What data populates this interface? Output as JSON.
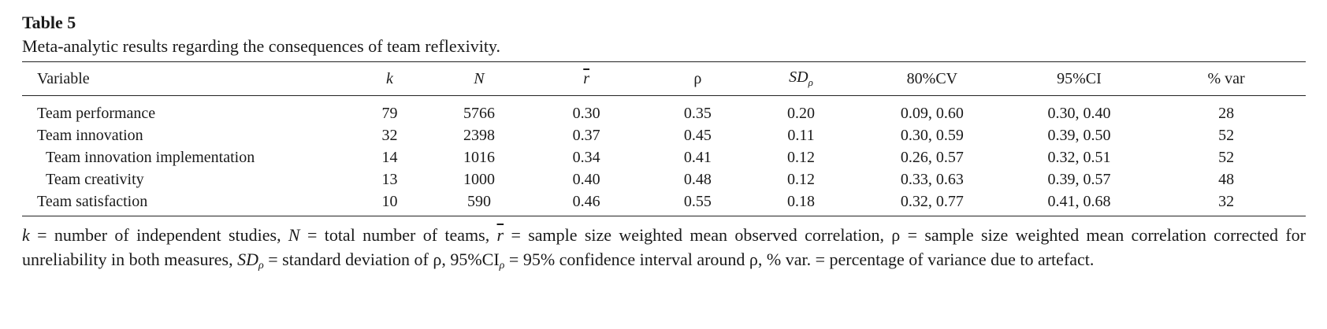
{
  "table": {
    "label": "Table 5",
    "caption": "Meta-analytic results regarding the consequences of team reflexivity.",
    "headers": {
      "variable": "Variable",
      "k": "k",
      "N": "N",
      "r": "r",
      "rho": "ρ",
      "sd_main": "SD",
      "sd_sub": "ρ",
      "cv": "80%CV",
      "ci": "95%CI",
      "pct_var": "% var"
    },
    "rows": [
      {
        "variable": "Team performance",
        "indent": false,
        "k": "79",
        "N": "5766",
        "r": "0.30",
        "rho": "0.35",
        "sd": "0.20",
        "cv": "0.09, 0.60",
        "ci": "0.30, 0.40",
        "pct_var": "28"
      },
      {
        "variable": "Team innovation",
        "indent": false,
        "k": "32",
        "N": "2398",
        "r": "0.37",
        "rho": "0.45",
        "sd": "0.11",
        "cv": "0.30, 0.59",
        "ci": "0.39, 0.50",
        "pct_var": "52"
      },
      {
        "variable": "Team innovation implementation",
        "indent": true,
        "k": "14",
        "N": "1016",
        "r": "0.34",
        "rho": "0.41",
        "sd": "0.12",
        "cv": "0.26, 0.57",
        "ci": "0.32, 0.51",
        "pct_var": "52"
      },
      {
        "variable": "Team creativity",
        "indent": true,
        "k": "13",
        "N": "1000",
        "r": "0.40",
        "rho": "0.48",
        "sd": "0.12",
        "cv": "0.33, 0.63",
        "ci": "0.39, 0.57",
        "pct_var": "48"
      },
      {
        "variable": "Team satisfaction",
        "indent": false,
        "k": "10",
        "N": "590",
        "r": "0.46",
        "rho": "0.55",
        "sd": "0.18",
        "cv": "0.32, 0.77",
        "ci": "0.41, 0.68",
        "pct_var": "32"
      }
    ]
  },
  "note": {
    "k_sym": "k",
    "k_def": " = number of independent studies, ",
    "n_sym": "N",
    "n_def": " = total number of teams, ",
    "r_sym": "r",
    "r_def": " = sample size weighted mean observed correlation, ρ = sample size weighted mean correlation corrected for unreliability in both measures, ",
    "sd_sym": "SD",
    "sd_sub": "ρ",
    "sd_def": " = standard deviation of ρ, 95%CI",
    "ci_sub": "ρ",
    "ci_def": " = 95% confidence interval around ρ, % var. = percentage of variance due to artefact."
  }
}
